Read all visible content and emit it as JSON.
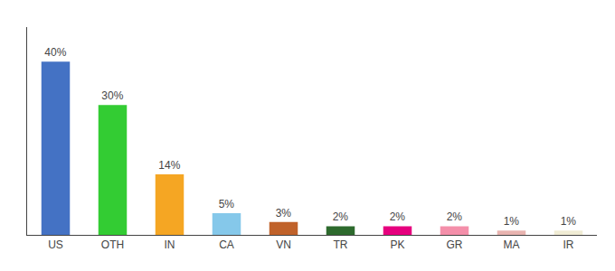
{
  "chart_data": {
    "type": "bar",
    "categories": [
      "US",
      "OTH",
      "IN",
      "CA",
      "VN",
      "TR",
      "PK",
      "GR",
      "MA",
      "IR"
    ],
    "values": [
      40,
      30,
      14,
      5,
      3,
      2,
      2,
      2,
      1,
      1
    ],
    "value_labels": [
      "40%",
      "30%",
      "14%",
      "5%",
      "3%",
      "2%",
      "2%",
      "2%",
      "1%",
      "1%"
    ],
    "colors": [
      "#4472c4",
      "#33cc33",
      "#f5a623",
      "#85c8ea",
      "#c0622a",
      "#2d6a2d",
      "#e6007e",
      "#f48faa",
      "#e8b4b0",
      "#f0ecd4"
    ],
    "ylim": [
      0,
      48
    ],
    "data_labels": true,
    "tick_labels": "x",
    "grid": false
  }
}
